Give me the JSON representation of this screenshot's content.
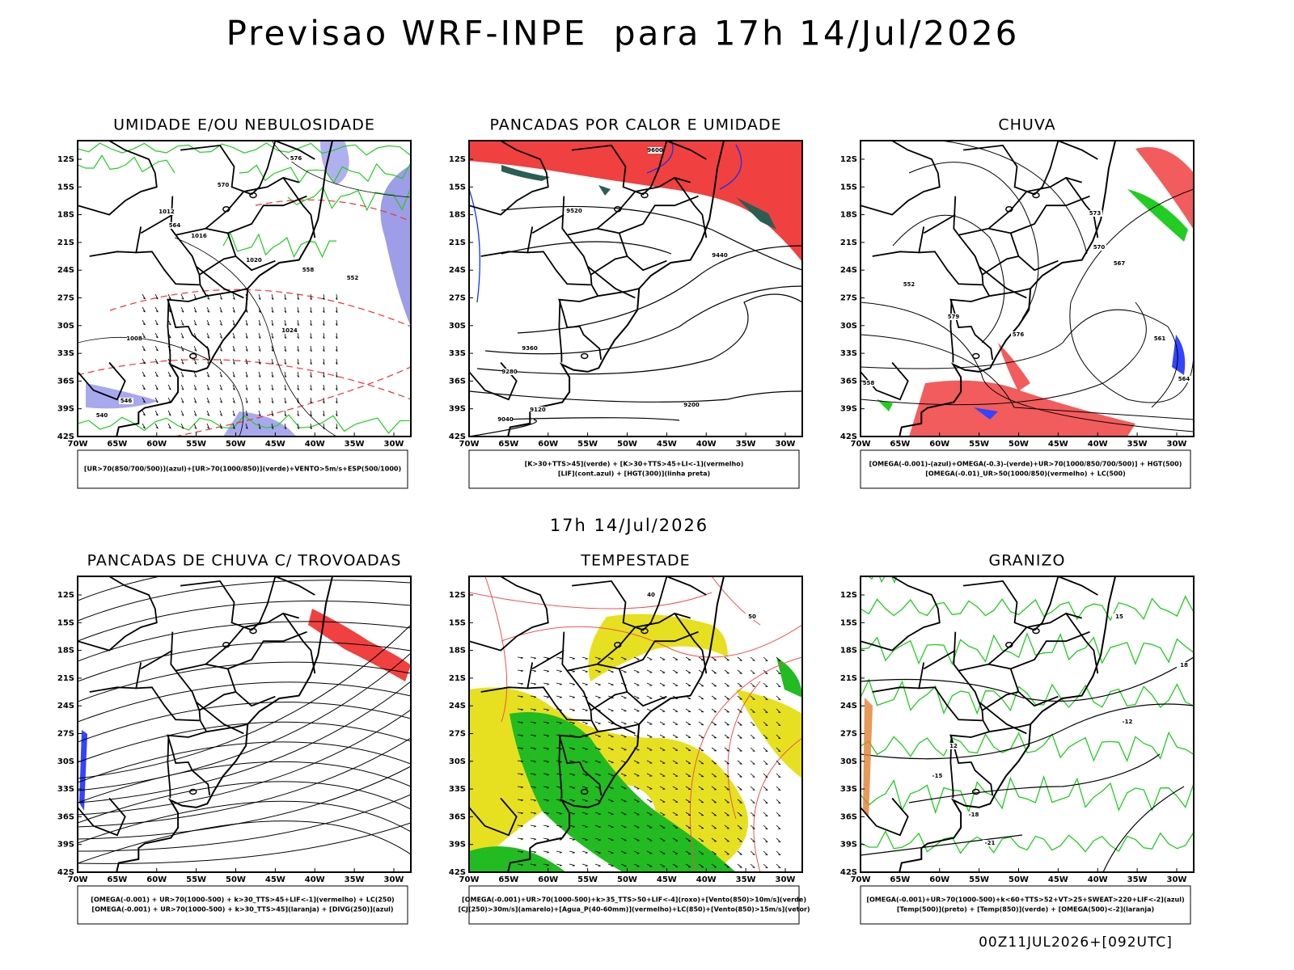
{
  "title": "Previsao WRF-INPE  para 17h 14/Jul/2026",
  "subtitle": "17h 14/Jul/2026",
  "footer": "00Z11JUL2026+[092UTC]",
  "lat_ticks": [
    "12S",
    "15S",
    "18S",
    "21S",
    "24S",
    "27S",
    "30S",
    "33S",
    "36S",
    "39S",
    "42S"
  ],
  "lon_ticks": [
    "70W",
    "65W",
    "60W",
    "55W",
    "50W",
    "45W",
    "40W",
    "35W",
    "30W"
  ],
  "panels": [
    {
      "title": "UMIDADE E/OU NEBULOSIDADE",
      "legend": [
        "[UR>70(850/700/500)](azul)+[UR>70(1000/850)](verde)+VENTO>5m/s+ESP(500/1000)"
      ],
      "contour_labels": [
        "1012",
        "1016",
        "1020",
        "1024",
        "1008",
        "576",
        "570",
        "564",
        "558",
        "552",
        "546",
        "540"
      ]
    },
    {
      "title": "PANCADAS POR CALOR E UMIDADE",
      "legend": [
        "[K>30+TTS>45](verde) + [K>30+TTS>45+LI<-1](vermelho)",
        "[LIF](cont.azul) + [HGT(300)](linha preta)"
      ],
      "contour_labels": [
        "9600",
        "9520",
        "9440",
        "9360",
        "9280",
        "9200",
        "9120",
        "9040"
      ]
    },
    {
      "title": "CHUVA",
      "legend": [
        "[OMEGA(-0.001)-(azul)+OMEGA(-0.3)-(verde)+UR>70(1000/850/700/500)] + HGT(500)",
        "[OMEGA(-0.01)_UR>50(1000/850)(vermelho) + LC(500)"
      ],
      "contour_labels": [
        "552",
        "579",
        "576",
        "573",
        "570",
        "567",
        "564",
        "561",
        "558"
      ]
    },
    {
      "title": "PANCADAS DE CHUVA C/ TROVOADAS",
      "legend": [
        "[OMEGA(-0.001) + UR>70(1000-500) + k>30_TTS>45+LIF<-1](vermelho) + LC(250)",
        "[OMEGA(-0.001) + UR>70(1000-500) + k>30_TTS>45](laranja) + [DIVG(250)](azul)"
      ],
      "contour_labels": []
    },
    {
      "title": "TEMPESTADE",
      "legend": [
        "[OMEGA(-0.001)+UR>70(1000-500)+k>35_TTS>50+LIF<-4](roxo)+[Vento(850)>10m/s](verde)",
        "[CJ(250)>30m/s](amarelo)+[Agua_P(40-60mm)](vermelho)+LC(850)+[Vento(850)>15m/s](vetor)"
      ],
      "contour_labels": [
        "40",
        "50"
      ]
    },
    {
      "title": "GRANIZO",
      "legend": [
        "[OMEGA(-0.001)+UR>70(1000-500)+k<60+TTS>52+VT>25+SWEAT>220+LIF<-2](azul)",
        "[Temp(500)](preto) + [Temp(850)](verde) + [OMEGA(500)<-2](laranja)"
      ],
      "contour_labels": [
        "-12",
        "-15",
        "-18",
        "-21",
        "12",
        "15",
        "18"
      ]
    }
  ]
}
